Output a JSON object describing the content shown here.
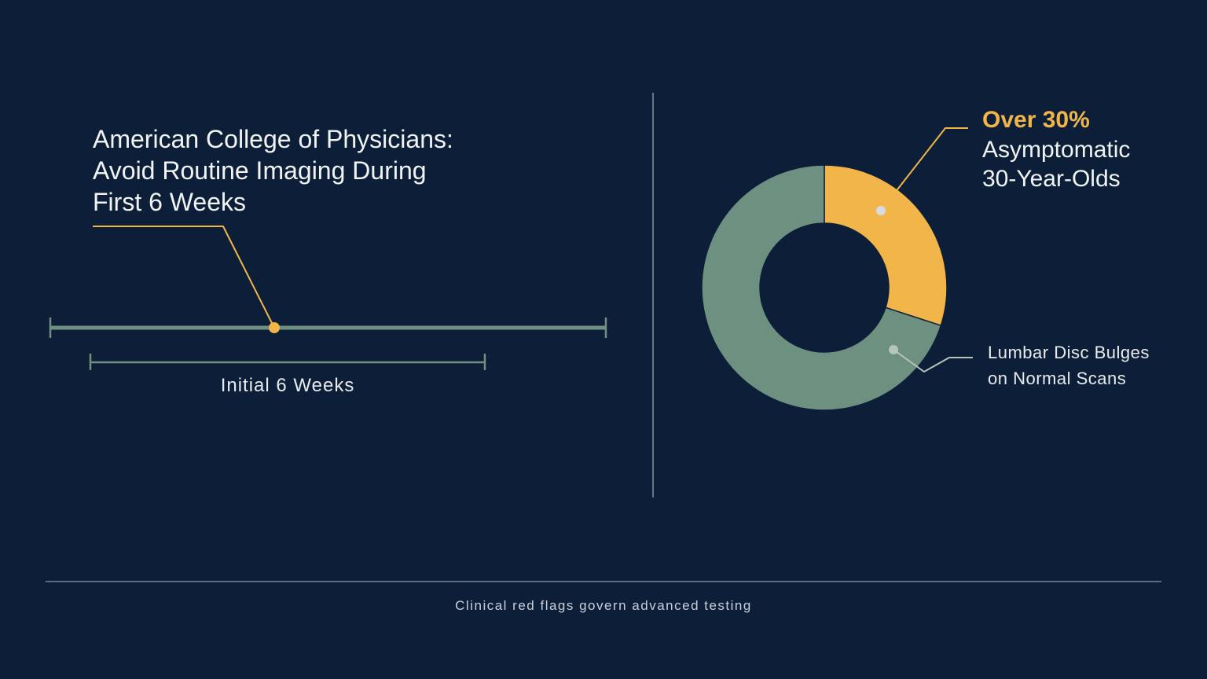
{
  "guideline": {
    "title_lines": [
      "American College of Physicians:",
      "Avoid Routine Imaging During",
      "First 6 Weeks"
    ],
    "window_label": "Initial 6 Weeks"
  },
  "stat": {
    "value_label": "Over 30%",
    "desc_lines": [
      "Asymptomatic",
      "30-Year-Olds"
    ]
  },
  "bulge": {
    "label_lines": [
      "Lumbar Disc Bulges",
      "on Normal Scans"
    ]
  },
  "footer": {
    "note": "Clinical red flags govern advanced testing"
  },
  "colors": {
    "background": "#0d1f38",
    "accent": "#f2b54a",
    "sage": "#6e9080",
    "text": "#f1f3f5"
  },
  "chart_data": {
    "type": "pie",
    "variant": "donut",
    "slices": [
      {
        "label": "Over 30%",
        "value": 30,
        "color": "#f2b54a"
      },
      {
        "label": "Lumbar Disc Bulges on Normal Scans",
        "value": 70,
        "color": "#6e9080"
      }
    ]
  }
}
